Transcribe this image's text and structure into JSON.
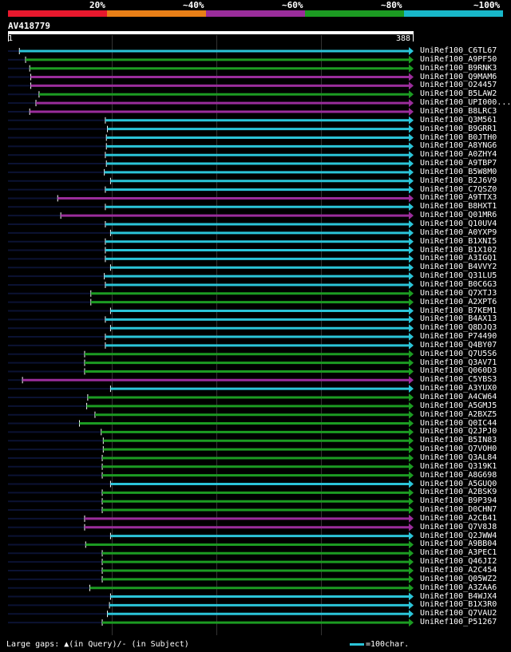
{
  "legend": {
    "labels": [
      "20%",
      "~40%",
      "~60%",
      "~80%",
      "~100%"
    ],
    "colors": [
      "#e8182d",
      "#e87f17",
      "#9a2d9b",
      "#1c9b22",
      "#18b7c9"
    ]
  },
  "query": {
    "id": "AV418779",
    "start": "1",
    "end": "388"
  },
  "hits": [
    {
      "name": "UniRef100_C6TL67",
      "color": "cyan",
      "start": 12,
      "end": 388
    },
    {
      "name": "UniRef100_A9PF50",
      "color": "green",
      "start": 18,
      "end": 388
    },
    {
      "name": "UniRef100_B9RNK3",
      "color": "green",
      "start": 22,
      "end": 388
    },
    {
      "name": "UniRef100_Q9MAM6",
      "color": "magenta",
      "start": 23,
      "end": 388
    },
    {
      "name": "UniRef100_O24457",
      "color": "magenta",
      "start": 23,
      "end": 388
    },
    {
      "name": "UniRef100_B5LAW2",
      "color": "green",
      "start": 31,
      "end": 388
    },
    {
      "name": "UniRef100_UPI000...",
      "color": "magenta",
      "start": 28,
      "end": 388
    },
    {
      "name": "UniRef100_B8LRC3",
      "color": "magenta",
      "start": 22,
      "end": 388
    },
    {
      "name": "UniRef100_Q3M561",
      "color": "cyan",
      "start": 95,
      "end": 388
    },
    {
      "name": "UniRef100_B9GRR1",
      "color": "cyan",
      "start": 97,
      "end": 388
    },
    {
      "name": "UniRef100_B0JTH0",
      "color": "cyan",
      "start": 96,
      "end": 388
    },
    {
      "name": "UniRef100_A8YNG6",
      "color": "cyan",
      "start": 96,
      "end": 388
    },
    {
      "name": "UniRef100_A0ZHY4",
      "color": "cyan",
      "start": 95,
      "end": 388
    },
    {
      "name": "UniRef100_A9TBP7",
      "color": "cyan",
      "start": 96,
      "end": 388
    },
    {
      "name": "UniRef100_B5W8M0",
      "color": "cyan",
      "start": 94,
      "end": 388
    },
    {
      "name": "UniRef100_B2J6V9",
      "color": "cyan",
      "start": 100,
      "end": 388
    },
    {
      "name": "UniRef100_C7QSZ0",
      "color": "cyan",
      "start": 95,
      "end": 388
    },
    {
      "name": "UniRef100_A9TTX3",
      "color": "magenta",
      "start": 49,
      "end": 388
    },
    {
      "name": "UniRef100_B8HXT1",
      "color": "cyan",
      "start": 95,
      "end": 388
    },
    {
      "name": "UniRef100_Q01MR6",
      "color": "magenta",
      "start": 52,
      "end": 388
    },
    {
      "name": "UniRef100_Q10UV4",
      "color": "cyan",
      "start": 95,
      "end": 388
    },
    {
      "name": "UniRef100_A0YXP9",
      "color": "cyan",
      "start": 100,
      "end": 388
    },
    {
      "name": "UniRef100_B1XNI5",
      "color": "cyan",
      "start": 95,
      "end": 388
    },
    {
      "name": "UniRef100_B1X102",
      "color": "cyan",
      "start": 95,
      "end": 388
    },
    {
      "name": "UniRef100_A3IGQ1",
      "color": "cyan",
      "start": 95,
      "end": 388
    },
    {
      "name": "UniRef100_B4VVY2",
      "color": "cyan",
      "start": 100,
      "end": 388
    },
    {
      "name": "UniRef100_Q31LU5",
      "color": "cyan",
      "start": 94,
      "end": 388
    },
    {
      "name": "UniRef100_B0C6G3",
      "color": "cyan",
      "start": 95,
      "end": 388
    },
    {
      "name": "UniRef100_Q7XTJ3",
      "color": "green",
      "start": 81,
      "end": 388
    },
    {
      "name": "UniRef100_A2XPT6",
      "color": "green",
      "start": 81,
      "end": 388
    },
    {
      "name": "UniRef100_B7KEM1",
      "color": "cyan",
      "start": 100,
      "end": 388
    },
    {
      "name": "UniRef100_B4AX13",
      "color": "cyan",
      "start": 95,
      "end": 388
    },
    {
      "name": "UniRef100_Q8DJQ3",
      "color": "cyan",
      "start": 100,
      "end": 388
    },
    {
      "name": "UniRef100_P74490",
      "color": "cyan",
      "start": 95,
      "end": 388
    },
    {
      "name": "UniRef100_Q4BY07",
      "color": "cyan",
      "start": 95,
      "end": 388
    },
    {
      "name": "UniRef100_Q7U5S6",
      "color": "green",
      "start": 75,
      "end": 388
    },
    {
      "name": "UniRef100_Q3AV71",
      "color": "green",
      "start": 75,
      "end": 388
    },
    {
      "name": "UniRef100_Q060D3",
      "color": "green",
      "start": 75,
      "end": 388
    },
    {
      "name": "UniRef100_C5YBS3",
      "color": "magenta",
      "start": 15,
      "end": 388
    },
    {
      "name": "UniRef100_A3YUX0",
      "color": "cyan",
      "start": 100,
      "end": 388
    },
    {
      "name": "UniRef100_A4CW64",
      "color": "green",
      "start": 78,
      "end": 388
    },
    {
      "name": "UniRef100_A5GMJ5",
      "color": "green",
      "start": 77,
      "end": 388
    },
    {
      "name": "UniRef100_A2BXZ5",
      "color": "green",
      "start": 85,
      "end": 388
    },
    {
      "name": "UniRef100_Q0IC44",
      "color": "green",
      "start": 70,
      "end": 388
    },
    {
      "name": "UniRef100_Q2JPJ0",
      "color": "green",
      "start": 91,
      "end": 388
    },
    {
      "name": "UniRef100_B5IN83",
      "color": "green",
      "start": 93,
      "end": 388
    },
    {
      "name": "UniRef100_Q7VOH0",
      "color": "green",
      "start": 93,
      "end": 388
    },
    {
      "name": "UniRef100_Q3AL84",
      "color": "green",
      "start": 92,
      "end": 388
    },
    {
      "name": "UniRef100_Q319K1",
      "color": "green",
      "start": 92,
      "end": 388
    },
    {
      "name": "UniRef100_A8G698",
      "color": "green",
      "start": 92,
      "end": 388
    },
    {
      "name": "UniRef100_A5GUQ0",
      "color": "cyan",
      "start": 100,
      "end": 388
    },
    {
      "name": "UniRef100_A2BSK9",
      "color": "green",
      "start": 92,
      "end": 388
    },
    {
      "name": "UniRef100_B9P394",
      "color": "green",
      "start": 92,
      "end": 388
    },
    {
      "name": "UniRef100_D0CHN7",
      "color": "green",
      "start": 92,
      "end": 388
    },
    {
      "name": "UniRef100_A2CB41",
      "color": "magenta",
      "start": 75,
      "end": 388
    },
    {
      "name": "UniRef100_Q7V8J8",
      "color": "magenta",
      "start": 75,
      "end": 388
    },
    {
      "name": "UniRef100_Q2JWW4",
      "color": "cyan",
      "start": 100,
      "end": 388
    },
    {
      "name": "UniRef100_A9BB04",
      "color": "green",
      "start": 76,
      "end": 388
    },
    {
      "name": "UniRef100_A3PEC1",
      "color": "green",
      "start": 92,
      "end": 388
    },
    {
      "name": "UniRef100_Q46JI2",
      "color": "green",
      "start": 92,
      "end": 388
    },
    {
      "name": "UniRef100_A2C454",
      "color": "green",
      "start": 92,
      "end": 388
    },
    {
      "name": "UniRef100_Q05WZ2",
      "color": "green",
      "start": 92,
      "end": 388
    },
    {
      "name": "UniRef100_A3ZAA6",
      "color": "green",
      "start": 80,
      "end": 388
    },
    {
      "name": "UniRef100_B4WJX4",
      "color": "cyan",
      "start": 100,
      "end": 388
    },
    {
      "name": "UniRef100_B1X3R0",
      "color": "cyan",
      "start": 99,
      "end": 388
    },
    {
      "name": "UniRef100_Q7VAU2",
      "color": "cyan",
      "start": 97,
      "end": 388
    },
    {
      "name": "UniRef100_P51267",
      "color": "green",
      "start": 92,
      "end": 388
    }
  ],
  "footer": {
    "note": "Large gaps: ▲(in Query)/- (in Subject)",
    "scale": "=100char."
  }
}
